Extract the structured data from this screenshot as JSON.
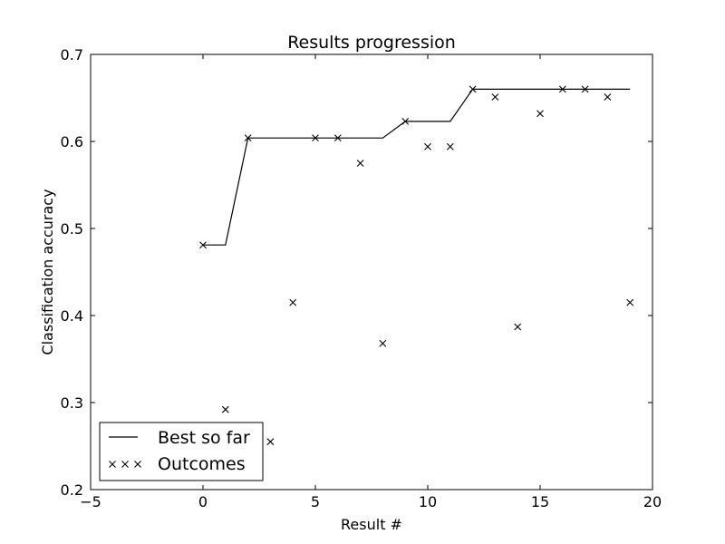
{
  "chart_data": {
    "type": "line",
    "title": "Results progression",
    "xlabel": "Result #",
    "ylabel": "Classification accuracy",
    "xlim": [
      -5,
      20
    ],
    "ylim": [
      0.2,
      0.7
    ],
    "xticks": [
      -5,
      0,
      5,
      10,
      15,
      20
    ],
    "xtick_labels": [
      "−5",
      "0",
      "5",
      "10",
      "15",
      "20"
    ],
    "yticks": [
      0.2,
      0.3,
      0.4,
      0.5,
      0.6,
      0.7
    ],
    "ytick_labels": [
      "0.2",
      "0.3",
      "0.4",
      "0.5",
      "0.6",
      "0.7"
    ],
    "grid": false,
    "legend": {
      "position": "lower-left",
      "entries": [
        "Best so far",
        "Outcomes"
      ]
    },
    "series": [
      {
        "name": "Best so far",
        "style": "line",
        "color": "#000000",
        "x": [
          0,
          1,
          2,
          3,
          4,
          5,
          6,
          7,
          8,
          9,
          10,
          11,
          12,
          13,
          14,
          15,
          16,
          17,
          18,
          19
        ],
        "y": [
          0.481,
          0.481,
          0.604,
          0.604,
          0.604,
          0.604,
          0.604,
          0.604,
          0.604,
          0.623,
          0.623,
          0.623,
          0.66,
          0.66,
          0.66,
          0.66,
          0.66,
          0.66,
          0.66,
          0.66
        ]
      },
      {
        "name": "Outcomes",
        "style": "x-marker",
        "color": "#000000",
        "x": [
          0,
          1,
          2,
          3,
          4,
          5,
          6,
          7,
          8,
          9,
          10,
          11,
          12,
          13,
          14,
          15,
          16,
          17,
          18,
          19
        ],
        "y": [
          0.481,
          0.292,
          0.604,
          0.255,
          0.415,
          0.604,
          0.604,
          0.575,
          0.368,
          0.623,
          0.594,
          0.594,
          0.66,
          0.651,
          0.387,
          0.632,
          0.66,
          0.66,
          0.651,
          0.415
        ]
      }
    ]
  }
}
